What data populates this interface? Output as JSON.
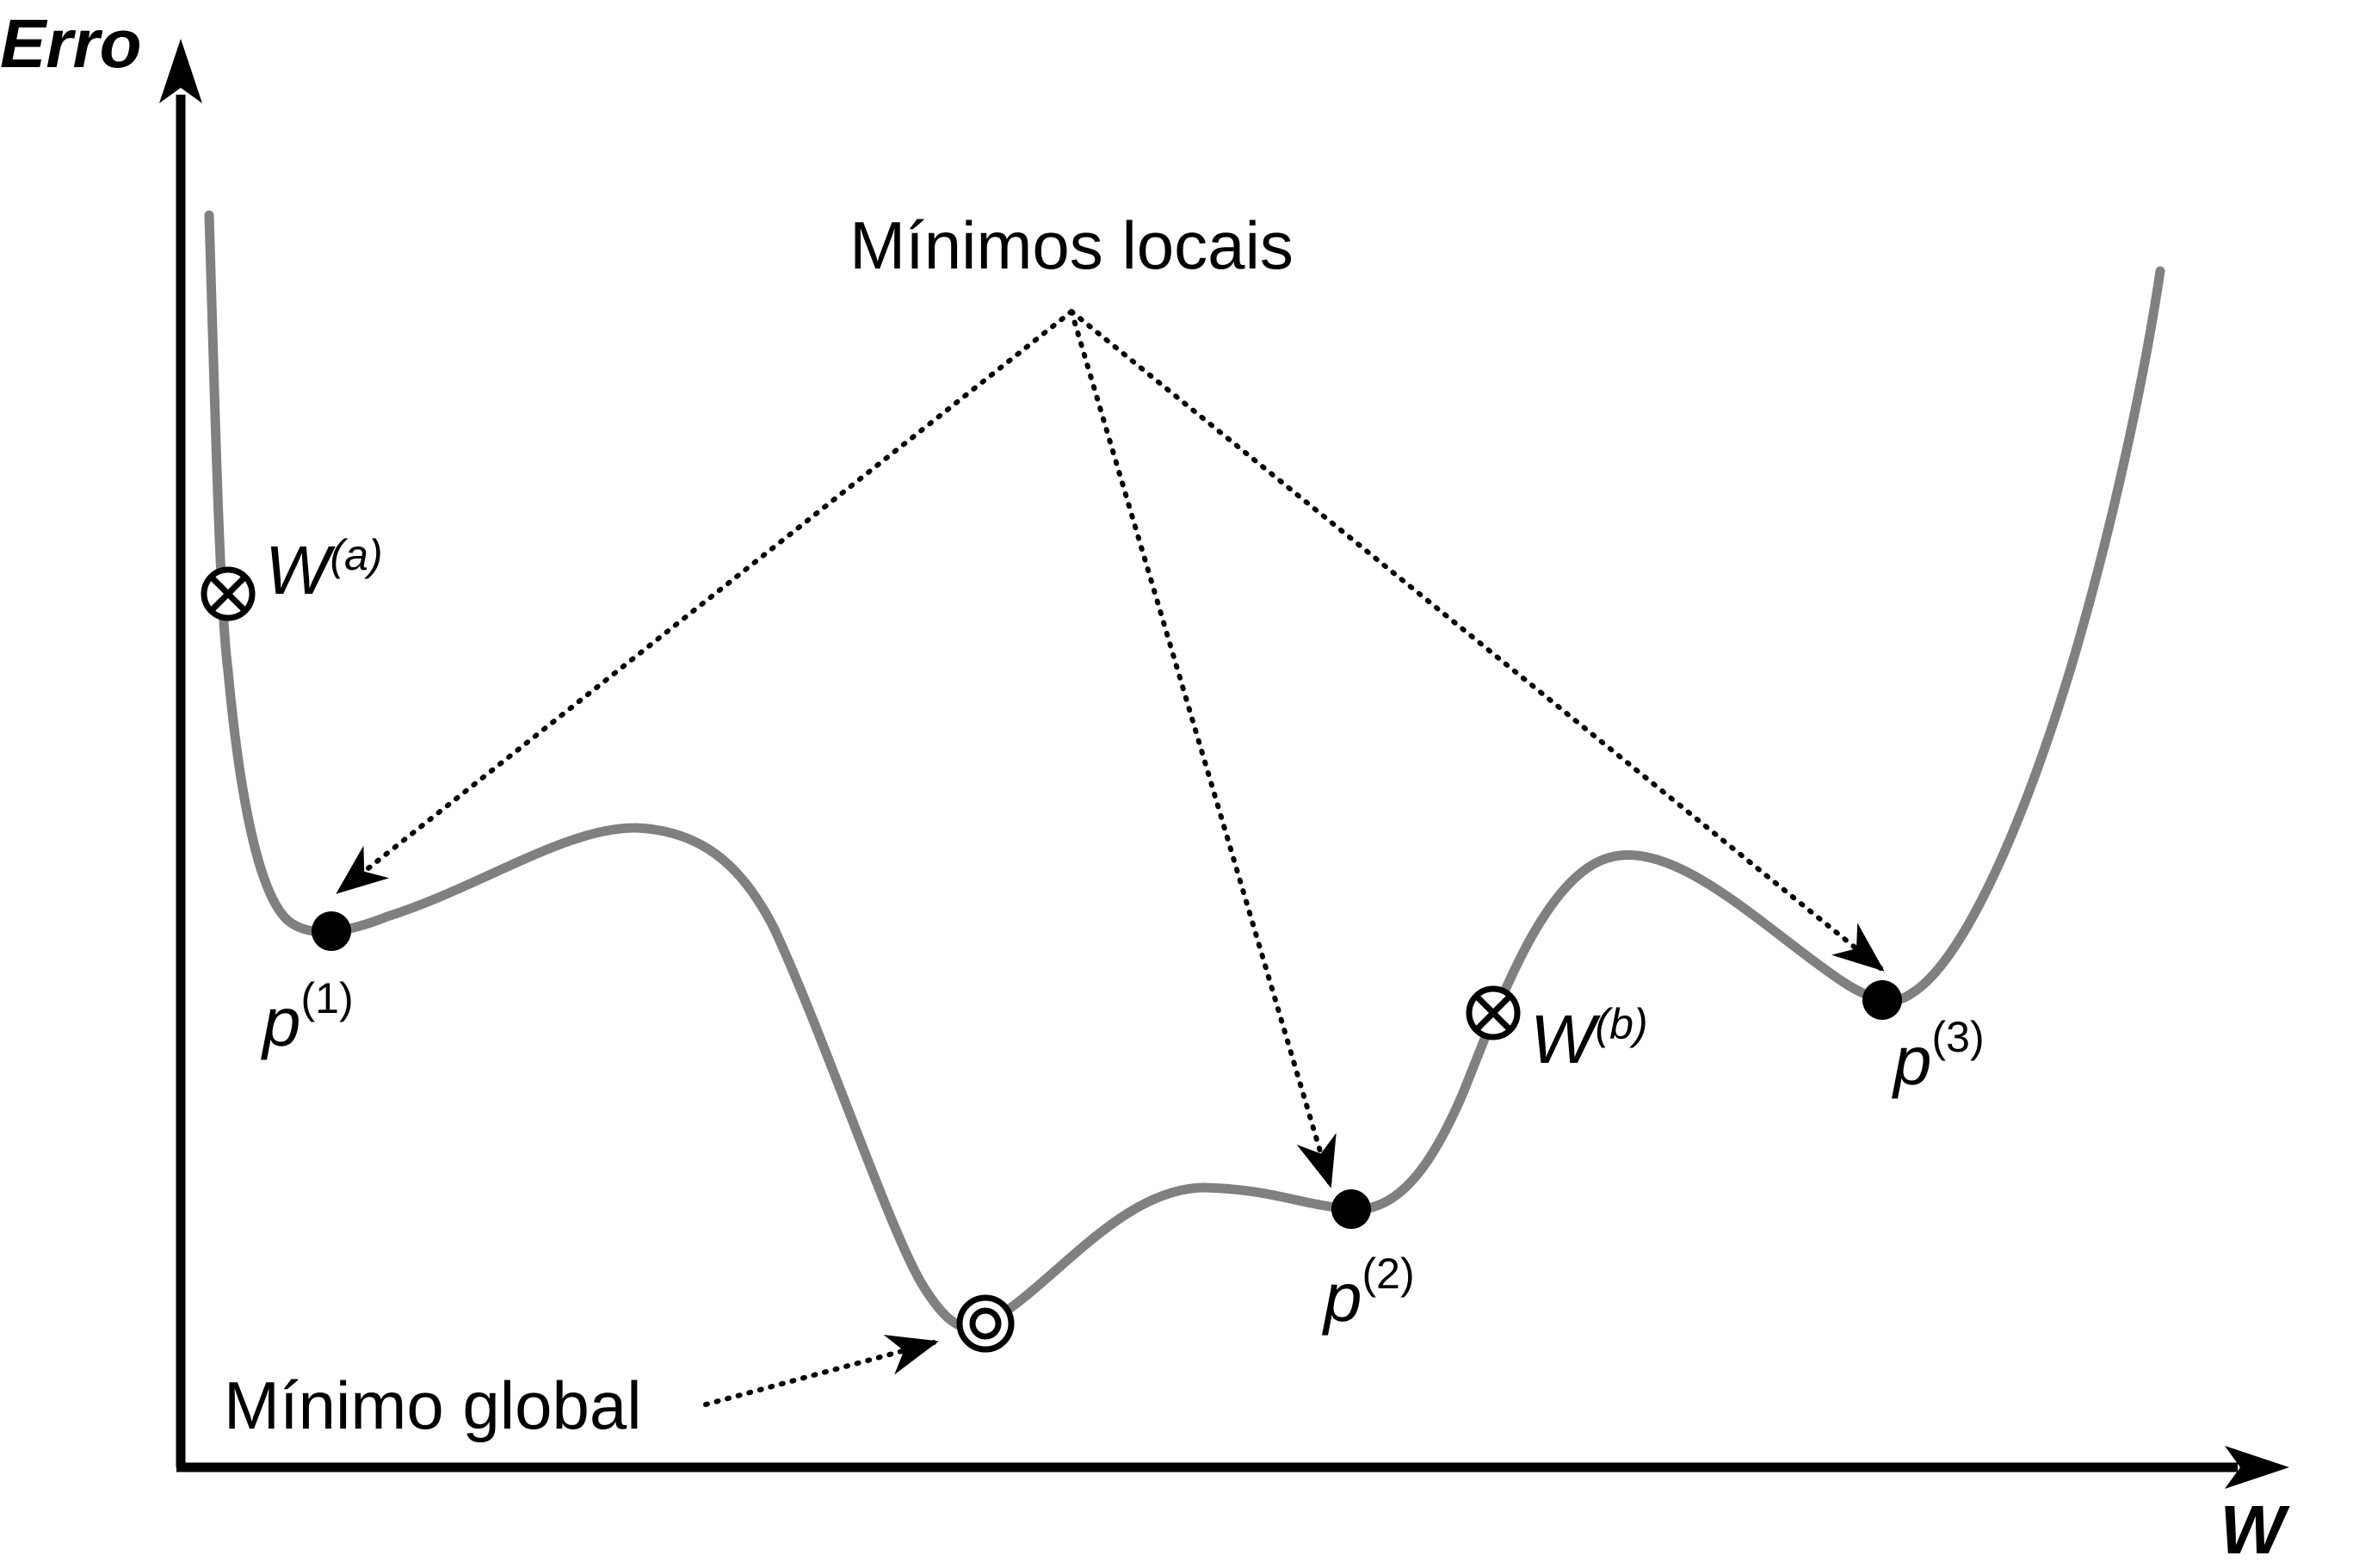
{
  "axes": {
    "y_label": "Erro",
    "x_label": "W"
  },
  "annotations": {
    "local_minima": "Mínimos locais",
    "global_minimum": "Mínimo global"
  },
  "points": {
    "p1": {
      "base": "p",
      "sup": "(1)"
    },
    "p2": {
      "base": "p",
      "sup": "(2)"
    },
    "p3": {
      "base": "p",
      "sup": "(3)"
    },
    "wa": {
      "base": "W",
      "sup": "(a)"
    },
    "wb": {
      "base": "W",
      "sup": "(b)"
    }
  },
  "colors": {
    "curve": "#808080",
    "ink": "#000000"
  }
}
